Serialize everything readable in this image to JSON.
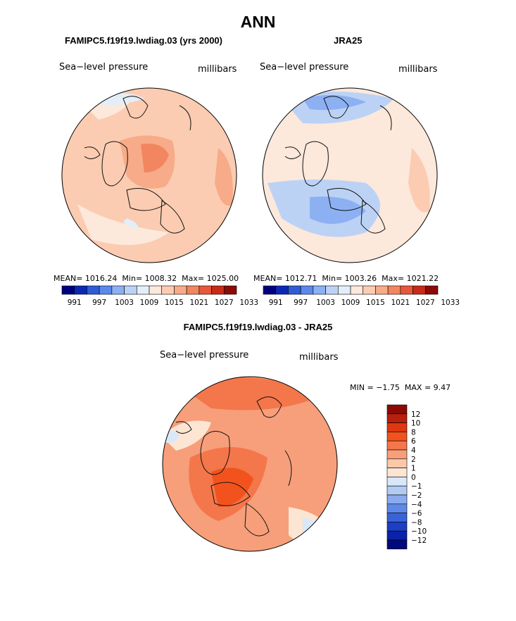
{
  "figure": {
    "title": "ANN"
  },
  "colors": {
    "abs_scale": [
      "#00007f",
      "#0a28b4",
      "#2e5cd8",
      "#5c88eb",
      "#8cb0f2",
      "#bcd2f5",
      "#e4eef9",
      "#fde8dc",
      "#fbccb1",
      "#f7ab88",
      "#f28660",
      "#e8573a",
      "#c92a19",
      "#8b0a06"
    ],
    "diff_scale": [
      "#8b0a06",
      "#b81f0d",
      "#dd3810",
      "#f2531d",
      "#f4764b",
      "#f69f7a",
      "#f9c9aa",
      "#fde5d3",
      "#d8e8f8",
      "#b2cbf3",
      "#8aabed",
      "#5f89e6",
      "#3a63d8",
      "#1c3fc6",
      "#0a22a8",
      "#010a7c"
    ],
    "coast": "#111111"
  },
  "panels": {
    "left": {
      "title": "FAMIPC5.f19f19.lwdiag.03 (yrs 2000)",
      "variable": "Sea−level pressure",
      "units": "millibars",
      "stats": {
        "mean_label": "MEAN=",
        "mean": "1016.24",
        "min_label": "Min=",
        "min": "1008.32",
        "max_label": "Max=",
        "max": "1025.00"
      }
    },
    "right": {
      "title": "JRA25",
      "variable": "Sea−level pressure",
      "units": "millibars",
      "stats": {
        "mean_label": "MEAN=",
        "mean": "1012.71",
        "min_label": "Min=",
        "min": "1003.26",
        "max_label": "Max=",
        "max": "1021.22"
      }
    },
    "diff": {
      "title": "FAMIPC5.f19f19.lwdiag.03 - JRA25",
      "variable": "Sea−level pressure",
      "units": "millibars",
      "stats": {
        "min_label": "MIN =",
        "min": "−1.75",
        "max_label": "MAX =",
        "max": "9.47"
      }
    }
  },
  "colorbars": {
    "abs_ticks": [
      "991",
      "997",
      "1003",
      "1009",
      "1015",
      "1021",
      "1027",
      "1033"
    ],
    "diff_ticks": [
      "12",
      "10",
      "8",
      "6",
      "4",
      "2",
      "1",
      "0",
      "−1",
      "−2",
      "−4",
      "−6",
      "−8",
      "−10",
      "−12"
    ]
  }
}
